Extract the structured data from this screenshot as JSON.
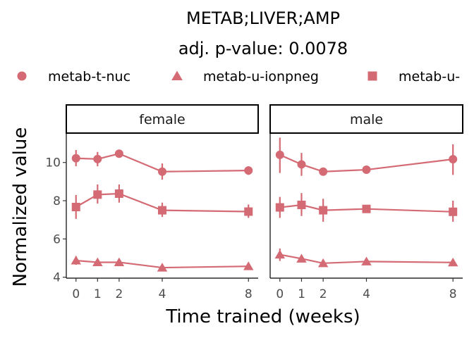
{
  "chart_data": {
    "type": "line",
    "title": "METAB;LIVER;AMP",
    "subtitle": "adj. p-value: 0.0078",
    "xlabel": "Time trained (weeks)",
    "ylabel": "Normalized value",
    "x_ticks": [
      0,
      1,
      2,
      4,
      8
    ],
    "y_ticks": [
      4,
      6,
      8,
      10
    ],
    "ylim": [
      3.95,
      11.5
    ],
    "color": "#d46a73",
    "legend_position": "top",
    "legend": [
      {
        "label": "metab-t-nuc",
        "shape": "circle"
      },
      {
        "label": "metab-u-ionpneg",
        "shape": "triangle"
      },
      {
        "label": "metab-u-",
        "shape": "square"
      }
    ],
    "panels": [
      {
        "label": "female",
        "series": [
          {
            "name": "metab-t-nuc",
            "shape": "circle",
            "x": [
              0,
              1,
              2,
              4,
              8
            ],
            "y": [
              10.22,
              10.18,
              10.46,
              9.52,
              9.58
            ],
            "lo": [
              9.8,
              9.8,
              10.3,
              9.1,
              9.35
            ],
            "hi": [
              10.65,
              10.55,
              10.6,
              9.95,
              9.8
            ]
          },
          {
            "name": "metab-u-",
            "shape": "square",
            "x": [
              0,
              1,
              2,
              4,
              8
            ],
            "y": [
              7.67,
              8.32,
              8.37,
              7.5,
              7.43
            ],
            "lo": [
              7.05,
              7.85,
              7.9,
              7.15,
              7.1
            ],
            "hi": [
              8.3,
              8.85,
              8.85,
              7.9,
              7.8
            ]
          },
          {
            "name": "metab-u-ionpneg",
            "shape": "triangle",
            "x": [
              0,
              1,
              2,
              4,
              8
            ],
            "y": [
              4.87,
              4.78,
              4.78,
              4.5,
              4.57
            ],
            "lo": [
              4.65,
              4.65,
              4.6,
              4.4,
              4.45
            ],
            "hi": [
              5.1,
              4.92,
              4.95,
              4.62,
              4.72
            ]
          }
        ]
      },
      {
        "label": "male",
        "series": [
          {
            "name": "metab-t-nuc",
            "shape": "circle",
            "x": [
              0,
              1,
              2,
              4,
              8
            ],
            "y": [
              10.4,
              9.9,
              9.52,
              9.62,
              10.17
            ],
            "lo": [
              9.45,
              9.3,
              9.4,
              9.52,
              9.35
            ],
            "hi": [
              11.3,
              10.5,
              9.65,
              9.72,
              10.95
            ]
          },
          {
            "name": "metab-u-",
            "shape": "square",
            "x": [
              0,
              1,
              2,
              4,
              8
            ],
            "y": [
              7.65,
              7.78,
              7.5,
              7.57,
              7.42
            ],
            "lo": [
              7.1,
              7.2,
              6.9,
              7.45,
              6.9
            ],
            "hi": [
              8.2,
              8.4,
              8.1,
              7.7,
              8.0
            ]
          },
          {
            "name": "metab-u-ionpneg",
            "shape": "triangle",
            "x": [
              0,
              1,
              2,
              4,
              8
            ],
            "y": [
              5.18,
              4.97,
              4.73,
              4.82,
              4.77
            ],
            "lo": [
              4.85,
              4.8,
              4.6,
              4.68,
              4.6
            ],
            "hi": [
              5.5,
              5.15,
              4.88,
              4.95,
              4.92
            ]
          }
        ]
      }
    ]
  }
}
